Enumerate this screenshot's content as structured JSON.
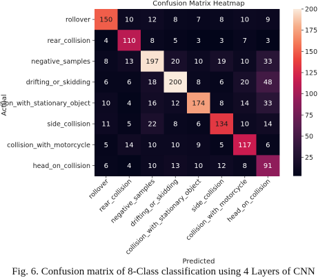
{
  "chart_data": {
    "type": "heatmap",
    "title": "Confusion Matrix Heatmap",
    "xlabel": "Predicted",
    "ylabel": "Actual",
    "x_tick_labels": [
      "rollover",
      "rear_collision",
      "negative_samples",
      "drifting_or_skidding",
      "collision_with_stationary_object",
      "side_collision",
      "collision_with_motorcycle",
      "head_on_collision"
    ],
    "y_tick_labels": [
      "rollover",
      "rear_collision",
      "negative_samples",
      "drifting_or_skidding",
      "collision_with_stationary_object",
      "side_collision",
      "collision_with_motorcycle",
      "head_on_collision"
    ],
    "values": [
      [
        150,
        10,
        12,
        8,
        7,
        8,
        10,
        9
      ],
      [
        4,
        110,
        8,
        5,
        3,
        3,
        7,
        3
      ],
      [
        8,
        13,
        197,
        20,
        10,
        19,
        10,
        33
      ],
      [
        6,
        6,
        18,
        200,
        8,
        6,
        20,
        48
      ],
      [
        10,
        4,
        16,
        12,
        174,
        8,
        14,
        33
      ],
      [
        11,
        5,
        22,
        8,
        6,
        134,
        10,
        14
      ],
      [
        5,
        14,
        10,
        10,
        9,
        5,
        117,
        6
      ],
      [
        6,
        4,
        10,
        13,
        10,
        12,
        8,
        91
      ]
    ],
    "colorbar_ticks": [
      25,
      50,
      75,
      100,
      125,
      150,
      175,
      200
    ],
    "value_range": [
      3,
      200
    ]
  },
  "caption": "Fig. 6.  Confusion matrix of 8-Class classification using 4 Layers of CNN"
}
